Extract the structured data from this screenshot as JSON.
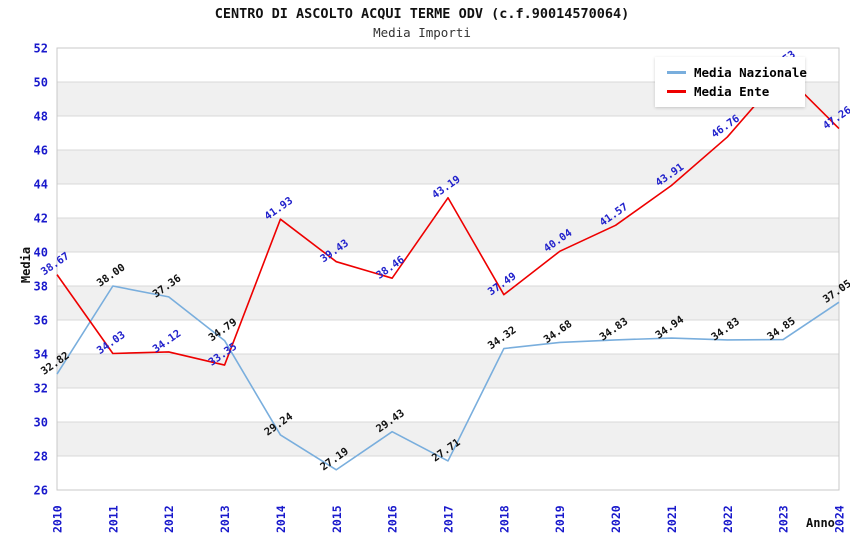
{
  "title": "CENTRO DI ASCOLTO ACQUI TERME ODV (c.f.90014570064)",
  "subtitle": "Media Importi",
  "colors": {
    "band": "#f0f0f0",
    "grid": "#d8d8d8",
    "border": "#c9c9c9",
    "tick_text": "#1919cc",
    "national_series": "#79aedd",
    "entity_series": "#ee0000",
    "national_label_text": "#111111",
    "entity_label_text": "#2222cc"
  },
  "chart_data": {
    "type": "line",
    "title": "CENTRO DI ASCOLTO ACQUI TERME ODV (c.f.90014570064)",
    "subtitle": "Media Importi",
    "xlabel": "Anno",
    "ylabel": "Media",
    "ylim": [
      26,
      52
    ],
    "ytick_step": 2,
    "grid": true,
    "legend_position": "top-right",
    "x": [
      "2010",
      "2011",
      "2012",
      "2013",
      "2014",
      "2015",
      "2016",
      "2017",
      "2018",
      "2019",
      "2020",
      "2021",
      "2022",
      "2023",
      "2024"
    ],
    "series": [
      {
        "name": "Media Nazionale",
        "color": "#79aedd",
        "label_color": "#111111",
        "values": [
          32.82,
          38.0,
          37.36,
          34.79,
          29.24,
          27.19,
          29.43,
          27.71,
          34.32,
          34.68,
          34.83,
          34.94,
          34.83,
          34.85,
          37.05
        ],
        "labels": [
          "32.82",
          "38.00",
          "37.36",
          "34.79",
          "29.24",
          "27.19",
          "29.43",
          "27.71",
          "34.32",
          "34.68",
          "34.83",
          "34.94",
          "34.83",
          "34.85",
          "37.05"
        ]
      },
      {
        "name": "Media Ente",
        "color": "#ee0000",
        "label_color": "#2222cc",
        "values": [
          38.67,
          34.03,
          34.12,
          33.35,
          41.93,
          39.43,
          38.46,
          43.19,
          37.49,
          40.04,
          41.57,
          43.91,
          46.76,
          50.53,
          47.26
        ],
        "labels": [
          "38.67",
          "34.03",
          "34.12",
          "33.35",
          "41.93",
          "39.43",
          "38.46",
          "43.19",
          "37.49",
          "40.04",
          "41.57",
          "43.91",
          "46.76",
          "50.53",
          "47.26"
        ]
      }
    ],
    "yticks": [
      "26",
      "28",
      "30",
      "32",
      "34",
      "36",
      "38",
      "40",
      "42",
      "44",
      "46",
      "48",
      "50",
      "52"
    ]
  }
}
